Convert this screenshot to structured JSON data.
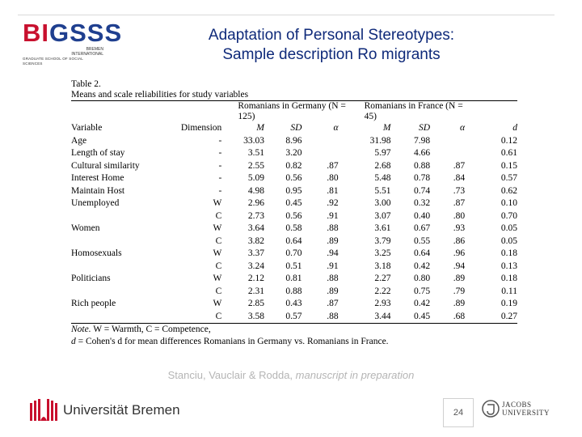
{
  "slide": {
    "title_line1": "Adaptation of Personal Stereotypes:",
    "title_line2": "Sample description Ro migrants",
    "logo_main_red": "BI",
    "logo_main_blue": "GSSS",
    "logo_sub1": "BREMEN",
    "logo_sub2": "INTERNATIONAL",
    "logo_sub3": "GRADUATE SCHOOL OF SOCIAL SCIENCES",
    "citation_authors": "Stanciu, Vauclair & Rodda, ",
    "citation_status": "manuscript in preparation",
    "university_name": "Universität Bremen",
    "page_number": "24",
    "jacobs_line1": "JACOBS",
    "jacobs_line2": "UNIVERSITY",
    "colors": {
      "title": "#0f2a7a",
      "logo_red": "#c8102e",
      "logo_blue": "#1f3f8f",
      "citation": "#b5b5b5"
    }
  },
  "table": {
    "caption_line1": "Table 2.",
    "caption_line2": "Means and scale reliabilities for study variables",
    "group_germany_line1": "Romanians in Germany (N =",
    "group_germany_line2": "125)",
    "group_france_line1": "Romanians in France (N =",
    "group_france_line2": "45)",
    "headers": {
      "variable": "Variable",
      "dimension": "Dimension",
      "m1": "M",
      "sd1": "SD",
      "a1": "α",
      "m2": "M",
      "sd2": "SD",
      "a2": "α",
      "d": "d"
    },
    "rows": [
      {
        "variable": "Age",
        "dimension": "-",
        "m1": "33.03",
        "sd1": "8.96",
        "a1": "",
        "m2": "31.98",
        "sd2": "7.98",
        "a2": "",
        "d": "0.12"
      },
      {
        "variable": "Length of stay",
        "dimension": "-",
        "m1": "3.51",
        "sd1": "3.20",
        "a1": "",
        "m2": "5.97",
        "sd2": "4.66",
        "a2": "",
        "d": "0.61"
      },
      {
        "variable": "Cultural similarity",
        "dimension": "-",
        "m1": "2.55",
        "sd1": "0.82",
        "a1": ".87",
        "m2": "2.68",
        "sd2": "0.88",
        "a2": ".87",
        "d": "0.15"
      },
      {
        "variable": "Interest Home",
        "dimension": "-",
        "m1": "5.09",
        "sd1": "0.56",
        "a1": ".80",
        "m2": "5.48",
        "sd2": "0.78",
        "a2": ".84",
        "d": "0.57"
      },
      {
        "variable": "Maintain Host",
        "dimension": "-",
        "m1": "4.98",
        "sd1": "0.95",
        "a1": ".81",
        "m2": "5.51",
        "sd2": "0.74",
        "a2": ".73",
        "d": "0.62"
      },
      {
        "variable": "Unemployed",
        "dimension": "W",
        "m1": "2.96",
        "sd1": "0.45",
        "a1": ".92",
        "m2": "3.00",
        "sd2": "0.32",
        "a2": ".87",
        "d": "0.10"
      },
      {
        "variable": "",
        "dimension": "C",
        "m1": "2.73",
        "sd1": "0.56",
        "a1": ".91",
        "m2": "3.07",
        "sd2": "0.40",
        "a2": ".80",
        "d": "0.70"
      },
      {
        "variable": "Women",
        "dimension": "W",
        "m1": "3.64",
        "sd1": "0.58",
        "a1": ".88",
        "m2": "3.61",
        "sd2": "0.67",
        "a2": ".93",
        "d": "0.05"
      },
      {
        "variable": "",
        "dimension": "C",
        "m1": "3.82",
        "sd1": "0.64",
        "a1": ".89",
        "m2": "3.79",
        "sd2": "0.55",
        "a2": ".86",
        "d": "0.05"
      },
      {
        "variable": "Homosexuals",
        "dimension": "W",
        "m1": "3.37",
        "sd1": "0.70",
        "a1": ".94",
        "m2": "3.25",
        "sd2": "0.64",
        "a2": ".96",
        "d": "0.18"
      },
      {
        "variable": "",
        "dimension": "C",
        "m1": "3.24",
        "sd1": "0.51",
        "a1": ".91",
        "m2": "3.18",
        "sd2": "0.42",
        "a2": ".94",
        "d": "0.13"
      },
      {
        "variable": "Politicians",
        "dimension": "W",
        "m1": "2.12",
        "sd1": "0.81",
        "a1": ".88",
        "m2": "2.27",
        "sd2": "0.80",
        "a2": ".89",
        "d": "0.18"
      },
      {
        "variable": "",
        "dimension": "C",
        "m1": "2.31",
        "sd1": "0.88",
        "a1": ".89",
        "m2": "2.22",
        "sd2": "0.75",
        "a2": ".79",
        "d": "0.11"
      },
      {
        "variable": "Rich people",
        "dimension": "W",
        "m1": "2.85",
        "sd1": "0.43",
        "a1": ".87",
        "m2": "2.93",
        "sd2": "0.42",
        "a2": ".89",
        "d": "0.19"
      },
      {
        "variable": "",
        "dimension": "C",
        "m1": "3.58",
        "sd1": "0.57",
        "a1": ".88",
        "m2": "3.44",
        "sd2": "0.45",
        "a2": ".68",
        "d": "0.27"
      }
    ],
    "note_label": "Note.",
    "note_line1": " W = Warmth, C = Competence,",
    "note_line2_label": "d",
    "note_line2": " = Cohen's d for mean differences Romanians in Germany vs. Romanians in France."
  }
}
